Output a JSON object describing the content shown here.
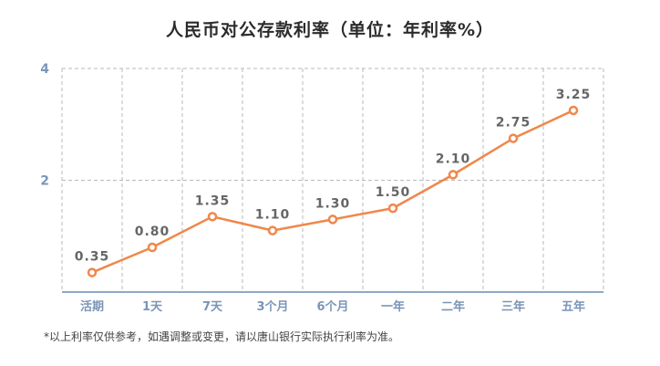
{
  "title": "人民币对公存款利率（单位：年利率%）",
  "footnote": "*以上利率仅供参考，如遇调整或变更，请以唐山银行实际执行利率为准。",
  "colors": {
    "line": "#f0874a",
    "axis": "#8fa9c4",
    "grid": "#b9b9b9",
    "tick": "#7a95b8"
  },
  "chart_data": {
    "type": "line",
    "title": "人民币对公存款利率（单位：年利率%）",
    "categories": [
      "活期",
      "1天",
      "7天",
      "3个月",
      "6个月",
      "一年",
      "二年",
      "三年",
      "五年"
    ],
    "series": [
      {
        "values": [
          0.35,
          0.8,
          1.35,
          1.1,
          1.3,
          1.5,
          2.1,
          2.75,
          3.25
        ]
      }
    ],
    "data_labels": [
      "0.35",
      "0.80",
      "1.35",
      "1.10",
      "1.30",
      "1.50",
      "2.10",
      "2.75",
      "3.25"
    ],
    "yticks": [
      "2",
      "4"
    ],
    "ylim": [
      0,
      4
    ],
    "grid": true,
    "xlabel": "",
    "ylabel": ""
  }
}
